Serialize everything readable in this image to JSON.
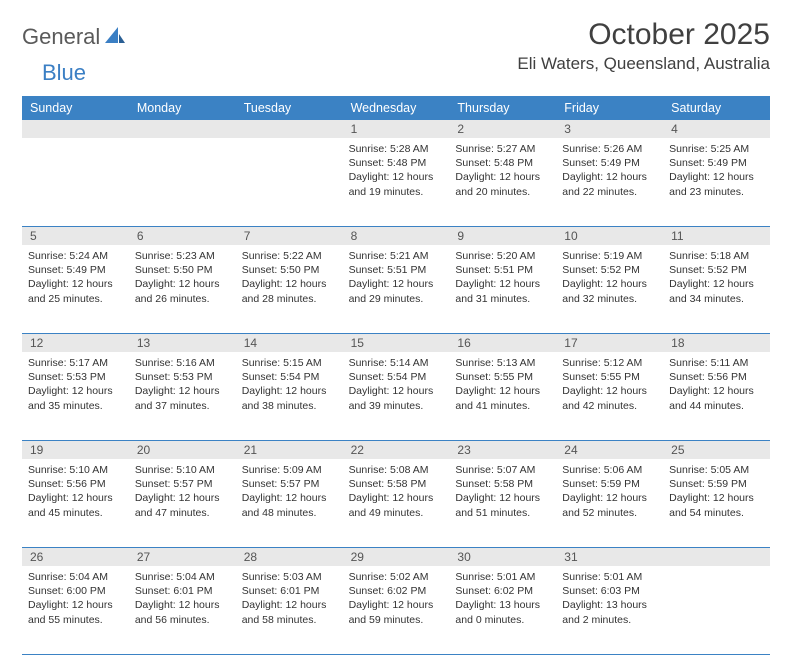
{
  "logo": {
    "text1": "General",
    "text2": "Blue"
  },
  "title": "October 2025",
  "location": "Eli Waters, Queensland, Australia",
  "colors": {
    "headerBg": "#3b82c4",
    "headerText": "#ffffff",
    "dayNumBg": "#e8e8e8",
    "borderColor": "#3b82c4",
    "logoGray": "#5a5a5a",
    "logoBlue": "#3b7fc4",
    "textColor": "#333333"
  },
  "dayNames": [
    "Sunday",
    "Monday",
    "Tuesday",
    "Wednesday",
    "Thursday",
    "Friday",
    "Saturday"
  ],
  "weeks": [
    [
      {
        "n": "",
        "sunrise": "",
        "sunset": "",
        "daylight": ""
      },
      {
        "n": "",
        "sunrise": "",
        "sunset": "",
        "daylight": ""
      },
      {
        "n": "",
        "sunrise": "",
        "sunset": "",
        "daylight": ""
      },
      {
        "n": "1",
        "sunrise": "Sunrise: 5:28 AM",
        "sunset": "Sunset: 5:48 PM",
        "daylight": "Daylight: 12 hours and 19 minutes."
      },
      {
        "n": "2",
        "sunrise": "Sunrise: 5:27 AM",
        "sunset": "Sunset: 5:48 PM",
        "daylight": "Daylight: 12 hours and 20 minutes."
      },
      {
        "n": "3",
        "sunrise": "Sunrise: 5:26 AM",
        "sunset": "Sunset: 5:49 PM",
        "daylight": "Daylight: 12 hours and 22 minutes."
      },
      {
        "n": "4",
        "sunrise": "Sunrise: 5:25 AM",
        "sunset": "Sunset: 5:49 PM",
        "daylight": "Daylight: 12 hours and 23 minutes."
      }
    ],
    [
      {
        "n": "5",
        "sunrise": "Sunrise: 5:24 AM",
        "sunset": "Sunset: 5:49 PM",
        "daylight": "Daylight: 12 hours and 25 minutes."
      },
      {
        "n": "6",
        "sunrise": "Sunrise: 5:23 AM",
        "sunset": "Sunset: 5:50 PM",
        "daylight": "Daylight: 12 hours and 26 minutes."
      },
      {
        "n": "7",
        "sunrise": "Sunrise: 5:22 AM",
        "sunset": "Sunset: 5:50 PM",
        "daylight": "Daylight: 12 hours and 28 minutes."
      },
      {
        "n": "8",
        "sunrise": "Sunrise: 5:21 AM",
        "sunset": "Sunset: 5:51 PM",
        "daylight": "Daylight: 12 hours and 29 minutes."
      },
      {
        "n": "9",
        "sunrise": "Sunrise: 5:20 AM",
        "sunset": "Sunset: 5:51 PM",
        "daylight": "Daylight: 12 hours and 31 minutes."
      },
      {
        "n": "10",
        "sunrise": "Sunrise: 5:19 AM",
        "sunset": "Sunset: 5:52 PM",
        "daylight": "Daylight: 12 hours and 32 minutes."
      },
      {
        "n": "11",
        "sunrise": "Sunrise: 5:18 AM",
        "sunset": "Sunset: 5:52 PM",
        "daylight": "Daylight: 12 hours and 34 minutes."
      }
    ],
    [
      {
        "n": "12",
        "sunrise": "Sunrise: 5:17 AM",
        "sunset": "Sunset: 5:53 PM",
        "daylight": "Daylight: 12 hours and 35 minutes."
      },
      {
        "n": "13",
        "sunrise": "Sunrise: 5:16 AM",
        "sunset": "Sunset: 5:53 PM",
        "daylight": "Daylight: 12 hours and 37 minutes."
      },
      {
        "n": "14",
        "sunrise": "Sunrise: 5:15 AM",
        "sunset": "Sunset: 5:54 PM",
        "daylight": "Daylight: 12 hours and 38 minutes."
      },
      {
        "n": "15",
        "sunrise": "Sunrise: 5:14 AM",
        "sunset": "Sunset: 5:54 PM",
        "daylight": "Daylight: 12 hours and 39 minutes."
      },
      {
        "n": "16",
        "sunrise": "Sunrise: 5:13 AM",
        "sunset": "Sunset: 5:55 PM",
        "daylight": "Daylight: 12 hours and 41 minutes."
      },
      {
        "n": "17",
        "sunrise": "Sunrise: 5:12 AM",
        "sunset": "Sunset: 5:55 PM",
        "daylight": "Daylight: 12 hours and 42 minutes."
      },
      {
        "n": "18",
        "sunrise": "Sunrise: 5:11 AM",
        "sunset": "Sunset: 5:56 PM",
        "daylight": "Daylight: 12 hours and 44 minutes."
      }
    ],
    [
      {
        "n": "19",
        "sunrise": "Sunrise: 5:10 AM",
        "sunset": "Sunset: 5:56 PM",
        "daylight": "Daylight: 12 hours and 45 minutes."
      },
      {
        "n": "20",
        "sunrise": "Sunrise: 5:10 AM",
        "sunset": "Sunset: 5:57 PM",
        "daylight": "Daylight: 12 hours and 47 minutes."
      },
      {
        "n": "21",
        "sunrise": "Sunrise: 5:09 AM",
        "sunset": "Sunset: 5:57 PM",
        "daylight": "Daylight: 12 hours and 48 minutes."
      },
      {
        "n": "22",
        "sunrise": "Sunrise: 5:08 AM",
        "sunset": "Sunset: 5:58 PM",
        "daylight": "Daylight: 12 hours and 49 minutes."
      },
      {
        "n": "23",
        "sunrise": "Sunrise: 5:07 AM",
        "sunset": "Sunset: 5:58 PM",
        "daylight": "Daylight: 12 hours and 51 minutes."
      },
      {
        "n": "24",
        "sunrise": "Sunrise: 5:06 AM",
        "sunset": "Sunset: 5:59 PM",
        "daylight": "Daylight: 12 hours and 52 minutes."
      },
      {
        "n": "25",
        "sunrise": "Sunrise: 5:05 AM",
        "sunset": "Sunset: 5:59 PM",
        "daylight": "Daylight: 12 hours and 54 minutes."
      }
    ],
    [
      {
        "n": "26",
        "sunrise": "Sunrise: 5:04 AM",
        "sunset": "Sunset: 6:00 PM",
        "daylight": "Daylight: 12 hours and 55 minutes."
      },
      {
        "n": "27",
        "sunrise": "Sunrise: 5:04 AM",
        "sunset": "Sunset: 6:01 PM",
        "daylight": "Daylight: 12 hours and 56 minutes."
      },
      {
        "n": "28",
        "sunrise": "Sunrise: 5:03 AM",
        "sunset": "Sunset: 6:01 PM",
        "daylight": "Daylight: 12 hours and 58 minutes."
      },
      {
        "n": "29",
        "sunrise": "Sunrise: 5:02 AM",
        "sunset": "Sunset: 6:02 PM",
        "daylight": "Daylight: 12 hours and 59 minutes."
      },
      {
        "n": "30",
        "sunrise": "Sunrise: 5:01 AM",
        "sunset": "Sunset: 6:02 PM",
        "daylight": "Daylight: 13 hours and 0 minutes."
      },
      {
        "n": "31",
        "sunrise": "Sunrise: 5:01 AM",
        "sunset": "Sunset: 6:03 PM",
        "daylight": "Daylight: 13 hours and 2 minutes."
      },
      {
        "n": "",
        "sunrise": "",
        "sunset": "",
        "daylight": ""
      }
    ]
  ]
}
